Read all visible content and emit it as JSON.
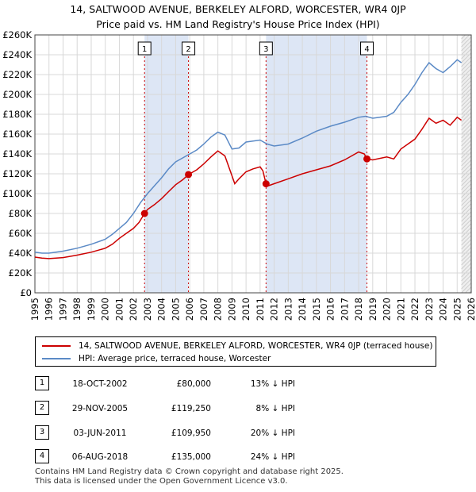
{
  "title": {
    "line1": "14, SALTWOOD AVENUE, BERKELEY ALFORD, WORCESTER, WR4 0JP",
    "line2": "Price paid vs. HM Land Registry's House Price Index (HPI)"
  },
  "colors": {
    "property": "#cc0000",
    "hpi": "#5b8ac6",
    "shade": "#dde6f5",
    "vline": "#cc0000"
  },
  "chart_data": {
    "type": "line",
    "title": "14, SALTWOOD AVENUE, BERKELEY ALFORD, WORCESTER, WR4 0JP",
    "subtitle": "Price paid vs. HM Land Registry's House Price Index (HPI)",
    "xlim": [
      1995,
      2026
    ],
    "ylim": [
      0,
      260000
    ],
    "y_ticks": [
      {
        "value": 0,
        "label": "£0"
      },
      {
        "value": 20000,
        "label": "£20K"
      },
      {
        "value": 40000,
        "label": "£40K"
      },
      {
        "value": 60000,
        "label": "£60K"
      },
      {
        "value": 80000,
        "label": "£80K"
      },
      {
        "value": 100000,
        "label": "£100K"
      },
      {
        "value": 120000,
        "label": "£120K"
      },
      {
        "value": 140000,
        "label": "£140K"
      },
      {
        "value": 160000,
        "label": "£160K"
      },
      {
        "value": 180000,
        "label": "£180K"
      },
      {
        "value": 200000,
        "label": "£200K"
      },
      {
        "value": 220000,
        "label": "£220K"
      },
      {
        "value": 240000,
        "label": "£240K"
      },
      {
        "value": 260000,
        "label": "£260K"
      }
    ],
    "x_ticks": [
      "1995",
      "1996",
      "1997",
      "1998",
      "1999",
      "2000",
      "2001",
      "2002",
      "2003",
      "2004",
      "2005",
      "2006",
      "2007",
      "2008",
      "2009",
      "2010",
      "2011",
      "2012",
      "2013",
      "2014",
      "2015",
      "2016",
      "2017",
      "2018",
      "2019",
      "2020",
      "2021",
      "2022",
      "2023",
      "2024",
      "2025",
      "2026"
    ],
    "grid": true,
    "series": [
      {
        "name": "14, SALTWOOD AVENUE, BERKELEY ALFORD, WORCESTER, WR4 0JP (terraced house)",
        "x": [
          1995.0,
          1995.5,
          1996.0,
          1997.0,
          1998.0,
          1999.0,
          2000.0,
          2000.5,
          2001.0,
          2001.5,
          2002.0,
          2002.4,
          2002.79,
          2003.0,
          2003.5,
          2004.0,
          2004.5,
          2005.0,
          2005.5,
          2005.91,
          2006.0,
          2006.5,
          2007.0,
          2007.5,
          2008.0,
          2008.5,
          2009.0,
          2009.2,
          2009.5,
          2010.0,
          2010.5,
          2011.0,
          2011.2,
          2011.42,
          2011.6,
          2012.0,
          2013.0,
          2014.0,
          2015.0,
          2016.0,
          2017.0,
          2017.5,
          2018.0,
          2018.4,
          2018.59,
          2019.0,
          2020.0,
          2020.5,
          2021.0,
          2021.5,
          2022.0,
          2022.5,
          2023.0,
          2023.5,
          2024.0,
          2024.5,
          2025.0,
          2025.3
        ],
        "y": [
          36000,
          35000,
          34500,
          35500,
          38000,
          41000,
          45000,
          49000,
          55000,
          60000,
          65000,
          71000,
          80000,
          84000,
          89000,
          95000,
          102000,
          109000,
          114000,
          119250,
          120000,
          124000,
          130000,
          137000,
          143000,
          138000,
          118000,
          110000,
          115000,
          122000,
          125000,
          127000,
          123000,
          109950,
          108000,
          110000,
          115000,
          120000,
          124000,
          128000,
          134000,
          138000,
          142000,
          140000,
          135000,
          134000,
          137000,
          135000,
          145000,
          150000,
          155000,
          165000,
          176000,
          171000,
          174000,
          169000,
          177000,
          174000
        ]
      },
      {
        "name": "HPI: Average price, terraced house, Worcester",
        "x": [
          1995.0,
          1995.5,
          1996.0,
          1997.0,
          1998.0,
          1999.0,
          2000.0,
          2000.5,
          2001.0,
          2001.5,
          2002.0,
          2002.5,
          2003.0,
          2003.5,
          2004.0,
          2004.5,
          2005.0,
          2005.5,
          2006.0,
          2006.5,
          2007.0,
          2007.5,
          2008.0,
          2008.5,
          2009.0,
          2009.5,
          2010.0,
          2010.5,
          2011.0,
          2011.5,
          2012.0,
          2013.0,
          2014.0,
          2015.0,
          2016.0,
          2017.0,
          2018.0,
          2018.5,
          2019.0,
          2019.5,
          2020.0,
          2020.5,
          2021.0,
          2021.5,
          2022.0,
          2022.5,
          2023.0,
          2023.5,
          2024.0,
          2024.5,
          2025.0,
          2025.3
        ],
        "y": [
          41000,
          40000,
          40000,
          42000,
          45000,
          49000,
          54000,
          59000,
          65000,
          71000,
          80000,
          91000,
          100000,
          108000,
          116000,
          125000,
          132000,
          136000,
          140000,
          144000,
          150000,
          157000,
          162000,
          159000,
          145000,
          146000,
          152000,
          153000,
          154000,
          150000,
          148000,
          150000,
          156000,
          163000,
          168000,
          172000,
          177000,
          178000,
          176000,
          177000,
          178000,
          182000,
          192000,
          200000,
          210000,
          222000,
          232000,
          226000,
          222000,
          228000,
          235000,
          232000
        ]
      }
    ],
    "transactions": [
      {
        "n": "1",
        "x": 2002.79,
        "price": 80000
      },
      {
        "n": "2",
        "x": 2005.91,
        "price": 119250
      },
      {
        "n": "3",
        "x": 2011.42,
        "price": 109950
      },
      {
        "n": "4",
        "x": 2018.59,
        "price": 135000
      }
    ],
    "forecast_from": 2025.3
  },
  "legend": {
    "property": "14, SALTWOOD AVENUE, BERKELEY ALFORD, WORCESTER, WR4 0JP (terraced house)",
    "hpi": "HPI: Average price, terraced house, Worcester"
  },
  "table": [
    {
      "n": "1",
      "date": "18-OCT-2002",
      "price": "£80,000",
      "hpi": "13% ↓ HPI"
    },
    {
      "n": "2",
      "date": "29-NOV-2005",
      "price": "£119,250",
      "hpi": "8% ↓ HPI"
    },
    {
      "n": "3",
      "date": "03-JUN-2011",
      "price": "£109,950",
      "hpi": "20% ↓ HPI"
    },
    {
      "n": "4",
      "date": "06-AUG-2018",
      "price": "£135,000",
      "hpi": "24% ↓ HPI"
    }
  ],
  "footer": {
    "line1": "Contains HM Land Registry data © Crown copyright and database right 2025.",
    "line2": "This data is licensed under the Open Government Licence v3.0."
  }
}
